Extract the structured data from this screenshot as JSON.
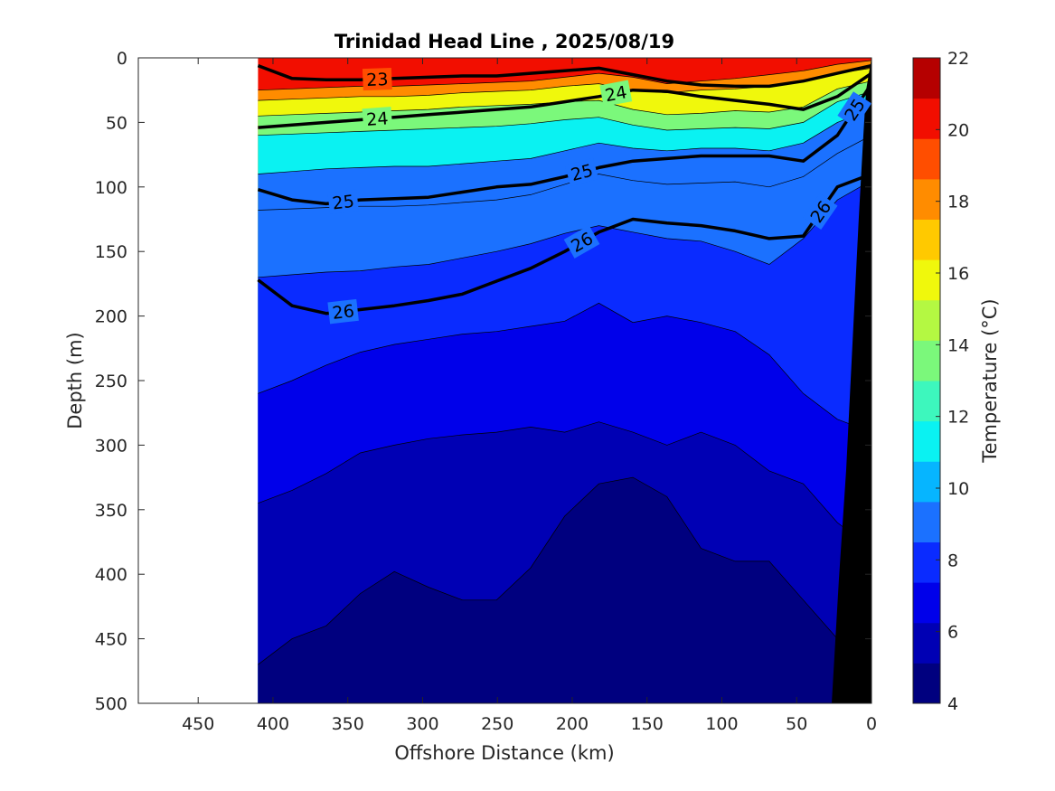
{
  "chart_data": {
    "type": "heatmap",
    "subtype": "filled-contour section",
    "title": "Trinidad Head Line , 2025/08/19",
    "xlabel": "Offshore Distance (km)",
    "ylabel": "Depth (m)",
    "xlim": [
      490,
      0
    ],
    "ylim": [
      500,
      0
    ],
    "x_direction": "reversed",
    "y_direction": "depth increasing downward",
    "x_ticks": [
      "450",
      "400",
      "350",
      "300",
      "250",
      "200",
      "150",
      "100",
      "50",
      "0"
    ],
    "y_ticks": [
      "0",
      "50",
      "100",
      "150",
      "200",
      "250",
      "300",
      "350",
      "400",
      "450",
      "500"
    ],
    "data_extent_km": [
      410,
      0
    ],
    "grid": false,
    "colorbar": {
      "label": "Temperature (°C)",
      "range": [
        4,
        22
      ],
      "ticks": [
        "4",
        "6",
        "8",
        "10",
        "12",
        "14",
        "16",
        "18",
        "20",
        "22"
      ],
      "colors": [
        "#00007f",
        "#0000b4",
        "#0000ea",
        "#0a2bff",
        "#1b71ff",
        "#06b5ff",
        "#0af2f2",
        "#3df7bd",
        "#7bf87b",
        "#b4f842",
        "#f0f80c",
        "#ffc900",
        "#ff8c00",
        "#ff4e00",
        "#f20e00",
        "#b50000"
      ]
    },
    "bathymetry_color": "#000000",
    "temperature_surfaces": [
      {
        "temperature": 18,
        "depth": [
          25,
          24,
          23,
          22,
          22,
          21,
          20,
          19,
          18,
          15,
          12,
          15,
          20,
          18,
          16,
          13,
          10,
          5,
          2
        ]
      },
      {
        "temperature": 16,
        "depth": [
          33,
          32,
          31,
          30,
          30,
          29,
          27,
          26,
          25,
          22,
          20,
          25,
          27,
          25,
          24,
          22,
          18,
          12,
          8
        ]
      },
      {
        "temperature": 14,
        "depth": [
          45,
          44,
          43,
          42,
          41,
          40,
          38,
          37,
          36,
          34,
          33,
          40,
          44,
          43,
          41,
          42,
          38,
          24,
          18
        ]
      },
      {
        "temperature": 12,
        "depth": [
          60,
          59,
          58,
          57,
          56,
          55,
          54,
          53,
          51,
          48,
          46,
          52,
          56,
          55,
          54,
          55,
          50,
          34,
          26
        ]
      },
      {
        "temperature": 10,
        "depth": [
          90,
          88,
          86,
          85,
          84,
          84,
          82,
          80,
          78,
          72,
          66,
          70,
          72,
          70,
          70,
          72,
          66,
          50,
          40
        ]
      },
      {
        "temperature": 9,
        "depth": [
          118,
          117,
          116,
          115,
          115,
          114,
          112,
          110,
          106,
          98,
          90,
          95,
          98,
          97,
          96,
          100,
          92,
          74,
          60
        ]
      },
      {
        "temperature": 8,
        "depth": [
          170,
          168,
          166,
          165,
          162,
          160,
          155,
          150,
          144,
          136,
          130,
          135,
          140,
          142,
          150,
          160,
          140,
          110,
          95
        ]
      },
      {
        "temperature": 7,
        "depth": [
          260,
          250,
          238,
          228,
          222,
          218,
          214,
          212,
          208,
          204,
          190,
          205,
          200,
          205,
          212,
          230,
          260,
          280,
          290
        ]
      },
      {
        "temperature": 6,
        "depth": [
          345,
          335,
          322,
          306,
          300,
          295,
          292,
          290,
          286,
          290,
          282,
          290,
          300,
          290,
          300,
          320,
          330,
          360,
          380
        ]
      },
      {
        "temperature": 5,
        "depth": [
          470,
          450,
          440,
          415,
          398,
          410,
          420,
          420,
          395,
          355,
          330,
          325,
          340,
          380,
          390,
          390,
          420,
          450,
          500
        ]
      }
    ],
    "isopycnals": [
      {
        "label": "23",
        "depth": [
          6,
          16,
          17,
          17,
          16,
          15,
          14,
          14,
          12,
          10,
          8,
          13,
          18,
          21,
          22,
          22,
          18,
          12,
          6
        ]
      },
      {
        "label": "24",
        "depth": [
          54,
          52,
          50,
          48,
          46,
          44,
          42,
          40,
          38,
          34,
          30,
          25,
          26,
          30,
          33,
          36,
          40,
          30,
          12
        ]
      },
      {
        "label": "25",
        "depth": [
          102,
          110,
          113,
          110,
          109,
          108,
          104,
          100,
          98,
          92,
          85,
          80,
          78,
          76,
          76,
          76,
          80,
          60,
          20
        ]
      },
      {
        "label": "26",
        "depth": [
          172,
          192,
          198,
          195,
          192,
          188,
          183,
          173,
          163,
          150,
          135,
          125,
          128,
          130,
          134,
          140,
          138,
          100,
          90
        ]
      }
    ]
  }
}
